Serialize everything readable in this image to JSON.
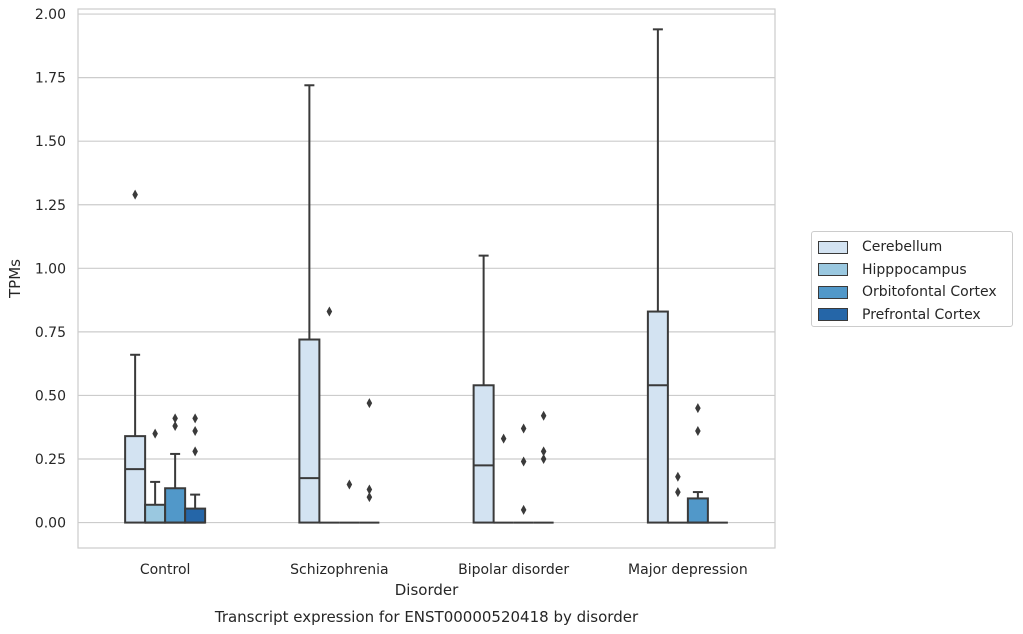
{
  "chart_data": {
    "type": "box",
    "title": "Transcript expression for ENST00000520418 by disorder",
    "xlabel": "Disorder",
    "ylabel": "TPMs",
    "ylim": [
      -0.1,
      2.02
    ],
    "yticks": [
      "0.00",
      "0.25",
      "0.50",
      "0.75",
      "1.00",
      "1.25",
      "1.50",
      "1.75",
      "2.00"
    ],
    "categories": [
      "Control",
      "Schizophrenia",
      "Bipolar disorder",
      "Major depression"
    ],
    "grid": true,
    "legend_position": "right",
    "series": [
      {
        "name": "Cerebellum",
        "color": "#d3e3f2",
        "boxes": [
          {
            "q1": 0.0,
            "median": 0.21,
            "q3": 0.34,
            "whisker_low": 0.0,
            "whisker_high": 0.66,
            "outliers": [
              1.29
            ]
          },
          {
            "q1": 0.0,
            "median": 0.175,
            "q3": 0.72,
            "whisker_low": 0.0,
            "whisker_high": 1.72,
            "outliers": []
          },
          {
            "q1": 0.0,
            "median": 0.225,
            "q3": 0.54,
            "whisker_low": 0.0,
            "whisker_high": 1.05,
            "outliers": []
          },
          {
            "q1": 0.0,
            "median": 0.54,
            "q3": 0.83,
            "whisker_low": 0.0,
            "whisker_high": 1.94,
            "outliers": []
          }
        ]
      },
      {
        "name": "Hipppocampus",
        "color": "#9ac8e0",
        "boxes": [
          {
            "q1": 0.0,
            "median": 0.0,
            "q3": 0.07,
            "whisker_low": 0.0,
            "whisker_high": 0.16,
            "outliers": [
              0.35
            ]
          },
          {
            "q1": 0.0,
            "median": 0.0,
            "q3": 0.0,
            "whisker_low": 0.0,
            "whisker_high": 0.0,
            "outliers": [
              0.83
            ]
          },
          {
            "q1": 0.0,
            "median": 0.0,
            "q3": 0.0,
            "whisker_low": 0.0,
            "whisker_high": 0.0,
            "outliers": [
              0.33
            ]
          },
          {
            "q1": 0.0,
            "median": 0.0,
            "q3": 0.0,
            "whisker_low": 0.0,
            "whisker_high": 0.0,
            "outliers": [
              0.18,
              0.12
            ]
          }
        ]
      },
      {
        "name": "Orbitofontal Cortex",
        "color": "#5198c9",
        "boxes": [
          {
            "q1": 0.0,
            "median": 0.0,
            "q3": 0.135,
            "whisker_low": 0.0,
            "whisker_high": 0.27,
            "outliers": [
              0.41,
              0.38
            ]
          },
          {
            "q1": 0.0,
            "median": 0.0,
            "q3": 0.0,
            "whisker_low": 0.0,
            "whisker_high": 0.0,
            "outliers": [
              0.15
            ]
          },
          {
            "q1": 0.0,
            "median": 0.0,
            "q3": 0.0,
            "whisker_low": 0.0,
            "whisker_high": 0.0,
            "outliers": [
              0.37,
              0.24,
              0.05
            ]
          },
          {
            "q1": 0.0,
            "median": 0.0,
            "q3": 0.095,
            "whisker_low": 0.0,
            "whisker_high": 0.12,
            "outliers": [
              0.45,
              0.36
            ]
          }
        ]
      },
      {
        "name": "Prefrontal Cortex",
        "color": "#2566a8",
        "boxes": [
          {
            "q1": 0.0,
            "median": 0.0,
            "q3": 0.055,
            "whisker_low": 0.0,
            "whisker_high": 0.11,
            "outliers": [
              0.41,
              0.36,
              0.28
            ]
          },
          {
            "q1": 0.0,
            "median": 0.0,
            "q3": 0.0,
            "whisker_low": 0.0,
            "whisker_high": 0.0,
            "outliers": [
              0.47,
              0.13,
              0.1
            ]
          },
          {
            "q1": 0.0,
            "median": 0.0,
            "q3": 0.0,
            "whisker_low": 0.0,
            "whisker_high": 0.0,
            "outliers": [
              0.42,
              0.28,
              0.25
            ]
          },
          {
            "q1": 0.0,
            "median": 0.0,
            "q3": 0.0,
            "whisker_low": 0.0,
            "whisker_high": 0.0,
            "outliers": []
          }
        ]
      }
    ]
  }
}
